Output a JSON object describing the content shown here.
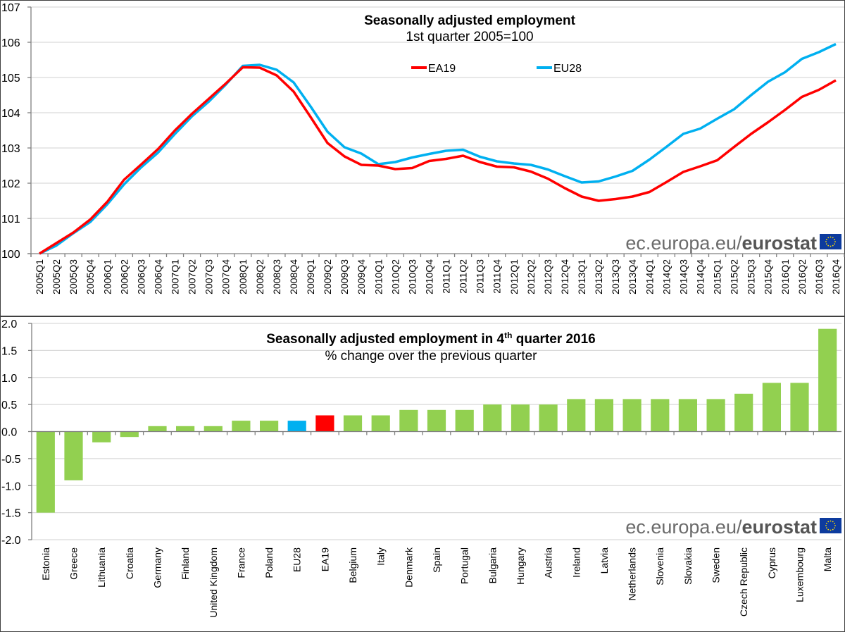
{
  "chart_data": [
    {
      "type": "line",
      "title": "Seasonally adjusted employment",
      "subtitle": "1st quarter 2005=100",
      "xlabel": "",
      "ylabel": "",
      "ylim": [
        100,
        107
      ],
      "yticks": [
        "100",
        "101",
        "102",
        "103",
        "104",
        "105",
        "106",
        "107"
      ],
      "grid": true,
      "legend_position": "top-center",
      "x": [
        "2005Q1",
        "2005Q2",
        "2005Q3",
        "2005Q4",
        "2006Q1",
        "2006Q2",
        "2006Q3",
        "2006Q4",
        "2007Q1",
        "2007Q2",
        "2007Q3",
        "2007Q4",
        "2008Q1",
        "2008Q2",
        "2008Q3",
        "2008Q4",
        "2009Q1",
        "2009Q2",
        "2009Q3",
        "2009Q4",
        "2010Q1",
        "2010Q2",
        "2010Q3",
        "2010Q4",
        "2011Q1",
        "2011Q2",
        "2011Q3",
        "2011Q4",
        "2012Q1",
        "2012Q2",
        "2012Q3",
        "2012Q4",
        "2013Q1",
        "2013Q2",
        "2013Q3",
        "2013Q4",
        "2014Q1",
        "2014Q2",
        "2014Q3",
        "2014Q4",
        "2015Q1",
        "2015Q2",
        "2015Q3",
        "2015Q4",
        "2016Q1",
        "2016Q2",
        "2016Q3",
        "2016Q4"
      ],
      "series": [
        {
          "name": "EA19",
          "color": "#ff0000",
          "values": [
            100.0,
            100.3,
            100.6,
            100.97,
            101.47,
            102.1,
            102.53,
            102.97,
            103.5,
            103.97,
            104.4,
            104.83,
            105.29,
            105.28,
            105.06,
            104.6,
            103.88,
            103.14,
            102.76,
            102.52,
            102.5,
            102.4,
            102.43,
            102.63,
            102.69,
            102.78,
            102.6,
            102.47,
            102.45,
            102.33,
            102.13,
            101.86,
            101.62,
            101.5,
            101.55,
            101.62,
            101.75,
            102.03,
            102.32,
            102.48,
            102.65,
            103.03,
            103.4,
            103.73,
            104.08,
            104.45,
            104.65,
            104.92
          ]
        },
        {
          "name": "EU28",
          "color": "#00b0f0",
          "values": [
            100.0,
            100.23,
            100.58,
            100.9,
            101.4,
            101.97,
            102.45,
            102.87,
            103.4,
            103.9,
            104.32,
            104.8,
            105.33,
            105.36,
            105.22,
            104.86,
            104.18,
            103.46,
            103.02,
            102.84,
            102.54,
            102.6,
            102.73,
            102.83,
            102.92,
            102.95,
            102.75,
            102.62,
            102.56,
            102.52,
            102.39,
            102.2,
            102.02,
            102.05,
            102.19,
            102.35,
            102.67,
            103.03,
            103.4,
            103.55,
            103.83,
            104.1,
            104.5,
            104.88,
            105.15,
            105.53,
            105.72,
            105.95
          ]
        }
      ],
      "source": "ec.europa.eu/",
      "source_bold": "eurostat"
    },
    {
      "type": "bar",
      "title": "Seasonally adjusted employment in 4",
      "title_sup": "th",
      "title_end": " quarter 2016",
      "subtitle": "% change over the previous quarter",
      "xlabel": "",
      "ylabel": "",
      "ylim": [
        -2.0,
        2.0
      ],
      "yticks": [
        "-2.0",
        "-1.5",
        "-1.0",
        "-0.5",
        "0.0",
        "0.5",
        "1.0",
        "1.5",
        "2.0"
      ],
      "grid": true,
      "categories": [
        "Estonia",
        "Greece",
        "Lithuania",
        "Croatia",
        "Germany",
        "Finland",
        "United Kingdom",
        "France",
        "Poland",
        "EU28",
        "EA19",
        "Belgium",
        "Italy",
        "Denmark",
        "Spain",
        "Portugal",
        "Bulgaria",
        "Hungary",
        "Austria",
        "Ireland",
        "Latvia",
        "Netherlands",
        "Slovenia",
        "Slovakia",
        "Sweden",
        "Czech Republic",
        "Cyprus",
        "Luxembourg",
        "Malta"
      ],
      "values": [
        -1.5,
        -0.9,
        -0.2,
        -0.1,
        0.1,
        0.1,
        0.1,
        0.2,
        0.2,
        0.2,
        0.3,
        0.3,
        0.3,
        0.4,
        0.4,
        0.4,
        0.5,
        0.5,
        0.5,
        0.6,
        0.6,
        0.6,
        0.6,
        0.6,
        0.6,
        0.7,
        0.9,
        0.9,
        1.9
      ],
      "colors": {
        "default": "#92d050",
        "EU28": "#00b0f0",
        "EA19": "#ff0000"
      },
      "source": "ec.europa.eu/",
      "source_bold": "eurostat"
    }
  ],
  "colors": {
    "grid": "#d9d9d9",
    "axis": "#808080",
    "eu_flag_blue": "#0d3b9e",
    "eu_flag_stars": "#ffdd00"
  }
}
